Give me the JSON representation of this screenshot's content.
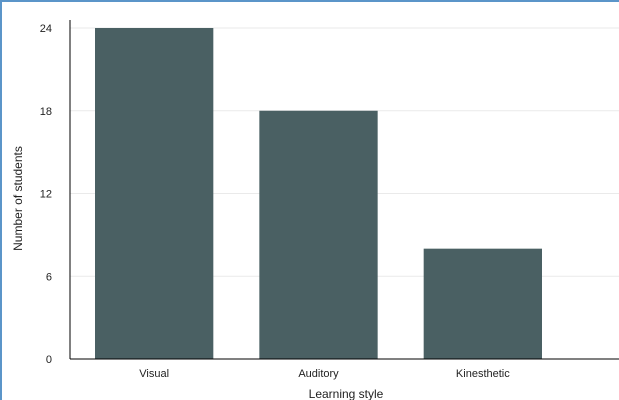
{
  "chart_data": {
    "type": "bar",
    "categories": [
      "Visual",
      "Auditory",
      "Kinesthetic"
    ],
    "values": [
      24,
      18,
      8
    ],
    "xlabel": "Learning style",
    "ylabel": "Number of students",
    "ylim": [
      0,
      24
    ],
    "yticks": [
      0,
      6,
      12,
      18,
      24
    ],
    "grid": true,
    "bar_color": "#4a6063",
    "grid_color": "#eaeaea",
    "axis_color": "#000000"
  }
}
